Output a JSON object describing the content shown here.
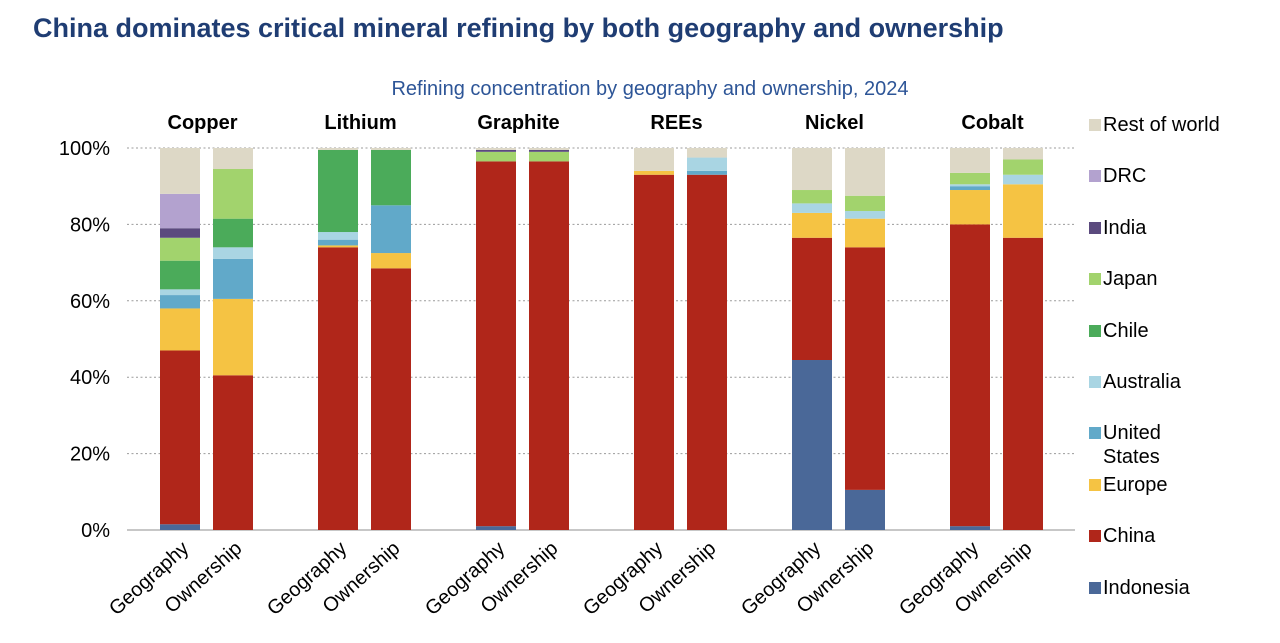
{
  "title": "China dominates critical mineral refining by both geography and ownership",
  "chart_data": {
    "type": "bar",
    "stacked": true,
    "title": "Refining concentration by geography and ownership, 2024",
    "xlabel": "",
    "ylabel": "",
    "ylim": [
      0,
      100
    ],
    "yticks": [
      "0%",
      "20%",
      "40%",
      "60%",
      "80%",
      "100%"
    ],
    "grid": "dotted horizontal",
    "legend_position": "right",
    "groups": [
      "Copper",
      "Lithium",
      "Graphite",
      "REEs",
      "Nickel",
      "Cobalt"
    ],
    "bar_labels": [
      "Geography",
      "Ownership"
    ],
    "series": [
      {
        "name": "Indonesia",
        "color": "#4a6898",
        "values": [
          [
            1.5,
            0
          ],
          [
            0,
            0
          ],
          [
            1,
            0
          ],
          [
            0,
            0
          ],
          [
            44.5,
            10.5
          ],
          [
            1,
            0
          ]
        ]
      },
      {
        "name": "China",
        "color": "#b0261a",
        "values": [
          [
            45.5,
            40.5
          ],
          [
            74,
            68.5
          ],
          [
            95.5,
            96.5
          ],
          [
            93,
            93
          ],
          [
            32,
            63.5
          ],
          [
            79,
            76.5
          ]
        ]
      },
      {
        "name": "Europe",
        "color": "#f5c343",
        "values": [
          [
            11,
            20
          ],
          [
            0.5,
            4
          ],
          [
            0,
            0
          ],
          [
            1,
            0
          ],
          [
            6.5,
            7.5
          ],
          [
            9,
            14
          ]
        ]
      },
      {
        "name": "United States",
        "color": "#61a9c9",
        "values": [
          [
            3.5,
            10.5
          ],
          [
            1.5,
            12.5
          ],
          [
            0,
            0
          ],
          [
            0,
            1
          ],
          [
            0,
            0
          ],
          [
            1,
            0
          ]
        ]
      },
      {
        "name": "Australia",
        "color": "#a9d5e3",
        "values": [
          [
            1.5,
            3
          ],
          [
            2,
            0
          ],
          [
            0,
            0
          ],
          [
            0,
            3.5
          ],
          [
            2.5,
            2
          ],
          [
            0.5,
            2.5
          ]
        ]
      },
      {
        "name": "Chile",
        "color": "#4bab5a",
        "values": [
          [
            7.5,
            7.5
          ],
          [
            21.5,
            14.5
          ],
          [
            0,
            0
          ],
          [
            0,
            0
          ],
          [
            0,
            0
          ],
          [
            0,
            0
          ]
        ]
      },
      {
        "name": "Japan",
        "color": "#a2d36d",
        "values": [
          [
            6,
            13
          ],
          [
            0,
            0
          ],
          [
            2.5,
            2.5
          ],
          [
            0,
            0
          ],
          [
            3.5,
            4
          ],
          [
            3,
            4
          ]
        ]
      },
      {
        "name": "India",
        "color": "#5b4a7e",
        "values": [
          [
            2.5,
            0
          ],
          [
            0,
            0
          ],
          [
            0.5,
            0.5
          ],
          [
            0,
            0
          ],
          [
            0,
            0
          ],
          [
            0,
            0
          ]
        ]
      },
      {
        "name": "DRC",
        "color": "#b3a2cf",
        "values": [
          [
            9,
            0
          ],
          [
            0,
            0
          ],
          [
            0,
            0
          ],
          [
            0,
            0
          ],
          [
            0,
            0
          ],
          [
            0,
            0
          ]
        ]
      },
      {
        "name": "Rest of world",
        "color": "#ddd8c6",
        "values": [
          [
            12,
            5.5
          ],
          [
            0.5,
            0.5
          ],
          [
            0.5,
            0.5
          ],
          [
            6,
            2.5
          ],
          [
            11,
            12.5
          ],
          [
            6.5,
            3
          ]
        ]
      }
    ]
  }
}
